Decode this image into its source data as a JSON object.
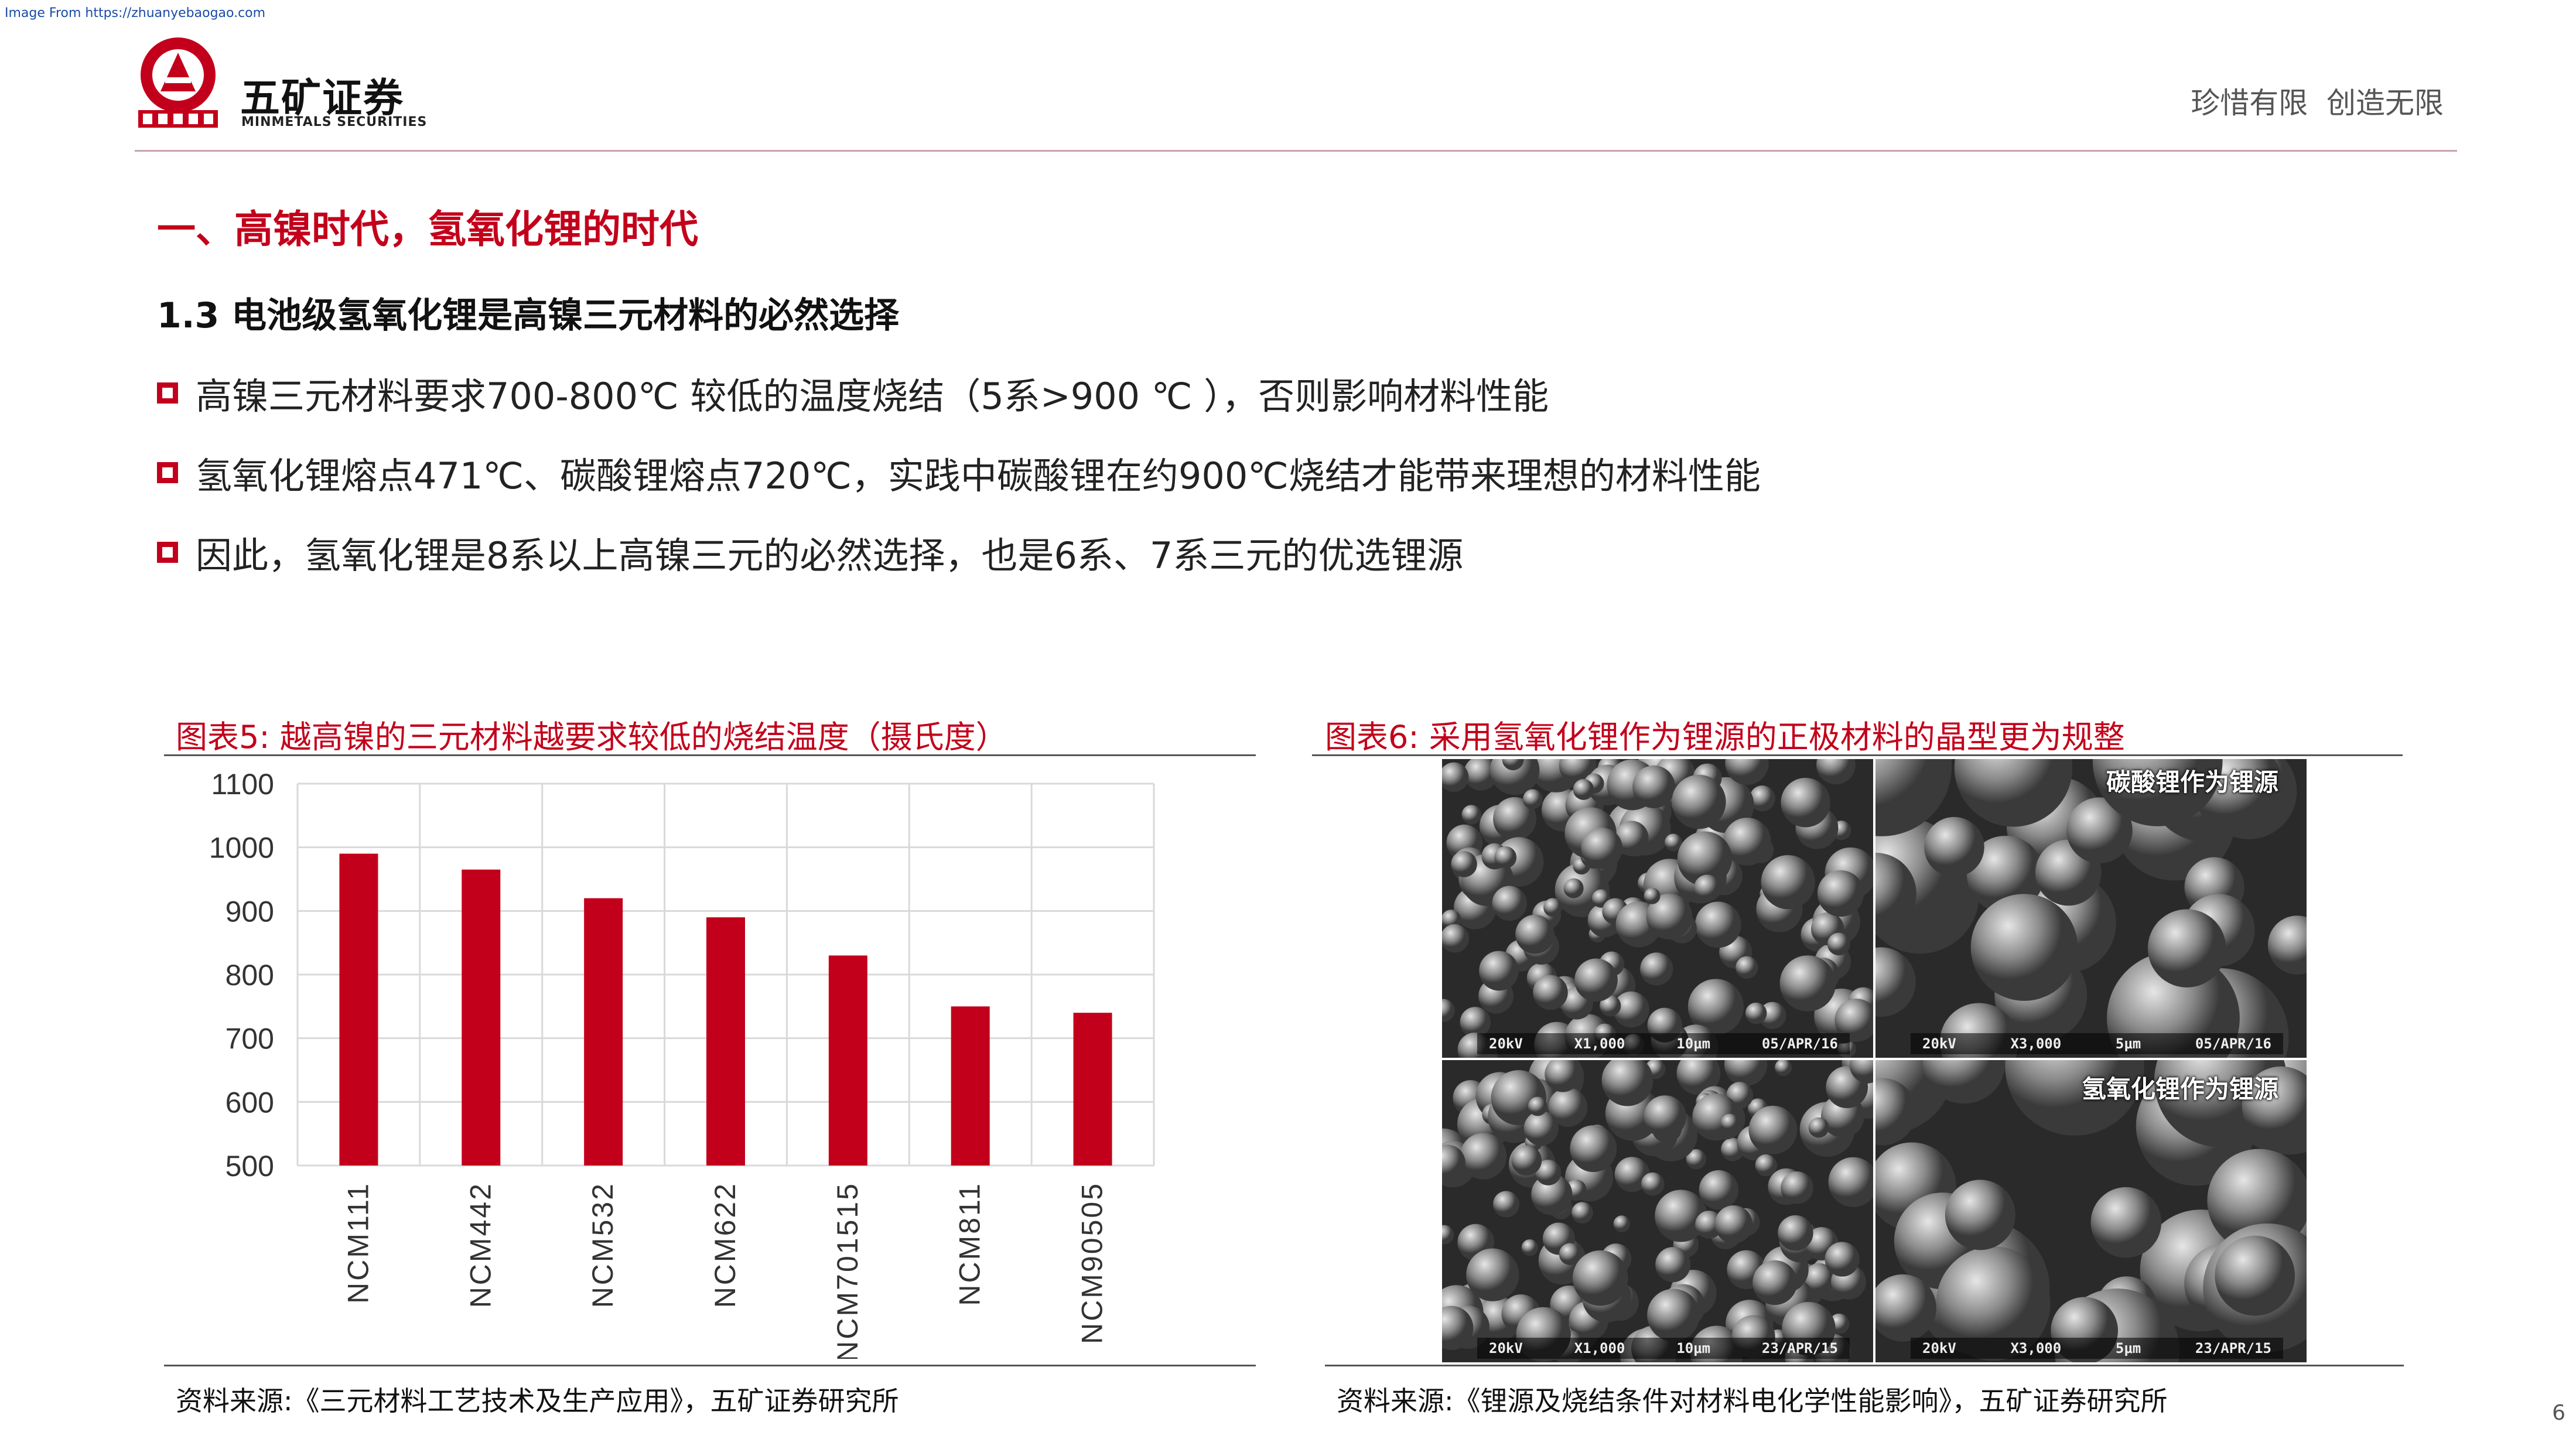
{
  "source_note": "Image From https://zhuanyebaogao.com",
  "header": {
    "brand_name": "五矿证券",
    "brand_sub": "MINMETALS SECURITIES",
    "slogan": "珍惜有限  创造无限",
    "logo_ring_text": "MINMETALS"
  },
  "section_title": "一、高镍时代，氢氧化锂的时代",
  "sub_title": "1.3 电池级氢氧化锂是高镍三元材料的必然选择",
  "bullets": [
    "高镍三元材料要求700-800℃ 较低的温度烧结（5系>900 ℃ ），否则影响材料性能",
    "氢氧化锂熔点471℃、碳酸锂熔点720℃，实践中碳酸锂在约900℃烧结才能带来理想的材料性能",
    "因此，氢氧化锂是8系以上高镍三元的必然选择，也是6系、7系三元的优选锂源"
  ],
  "figure5": {
    "title": "图表5: 越高镍的三元材料越要求较低的烧结温度（摄氏度）",
    "source": "资料来源:《三元材料工艺技术及生产应用》，五矿证券研究所"
  },
  "figure6": {
    "title": "图表6: 采用氢氧化锂作为锂源的正极材料的晶型更为规整",
    "source": "资料来源:《锂源及烧结条件对材料电化学性能影响》，五矿证券研究所",
    "label_top": "碳酸锂作为锂源",
    "label_bottom": "氢氧化锂作为锂源",
    "scalebars": [
      [
        "20kV",
        "X1,000",
        "10μm",
        "05/APR/16"
      ],
      [
        "20kV",
        "X3,000",
        "5μm",
        "05/APR/16"
      ],
      [
        "20kV",
        "X1,000",
        "10μm",
        "23/APR/15"
      ],
      [
        "20kV",
        "X3,000",
        "5μm",
        "23/APR/15"
      ]
    ]
  },
  "chart_data": {
    "type": "bar",
    "categories": [
      "NCM111",
      "NCM442",
      "NCM532",
      "NCM622",
      "NCM701515",
      "NCM811",
      "NCM90505"
    ],
    "values": [
      990,
      965,
      920,
      890,
      830,
      750,
      740
    ],
    "ylim": [
      500,
      1100
    ],
    "yticks": [
      500,
      600,
      700,
      800,
      900,
      1000,
      1100
    ],
    "title": "",
    "xlabel": "",
    "ylabel": "",
    "grid": true,
    "bar_color": "#c3001b"
  },
  "page_number": "6",
  "colors": {
    "accent": "#c3001b",
    "rule": "#c9a0ae"
  }
}
